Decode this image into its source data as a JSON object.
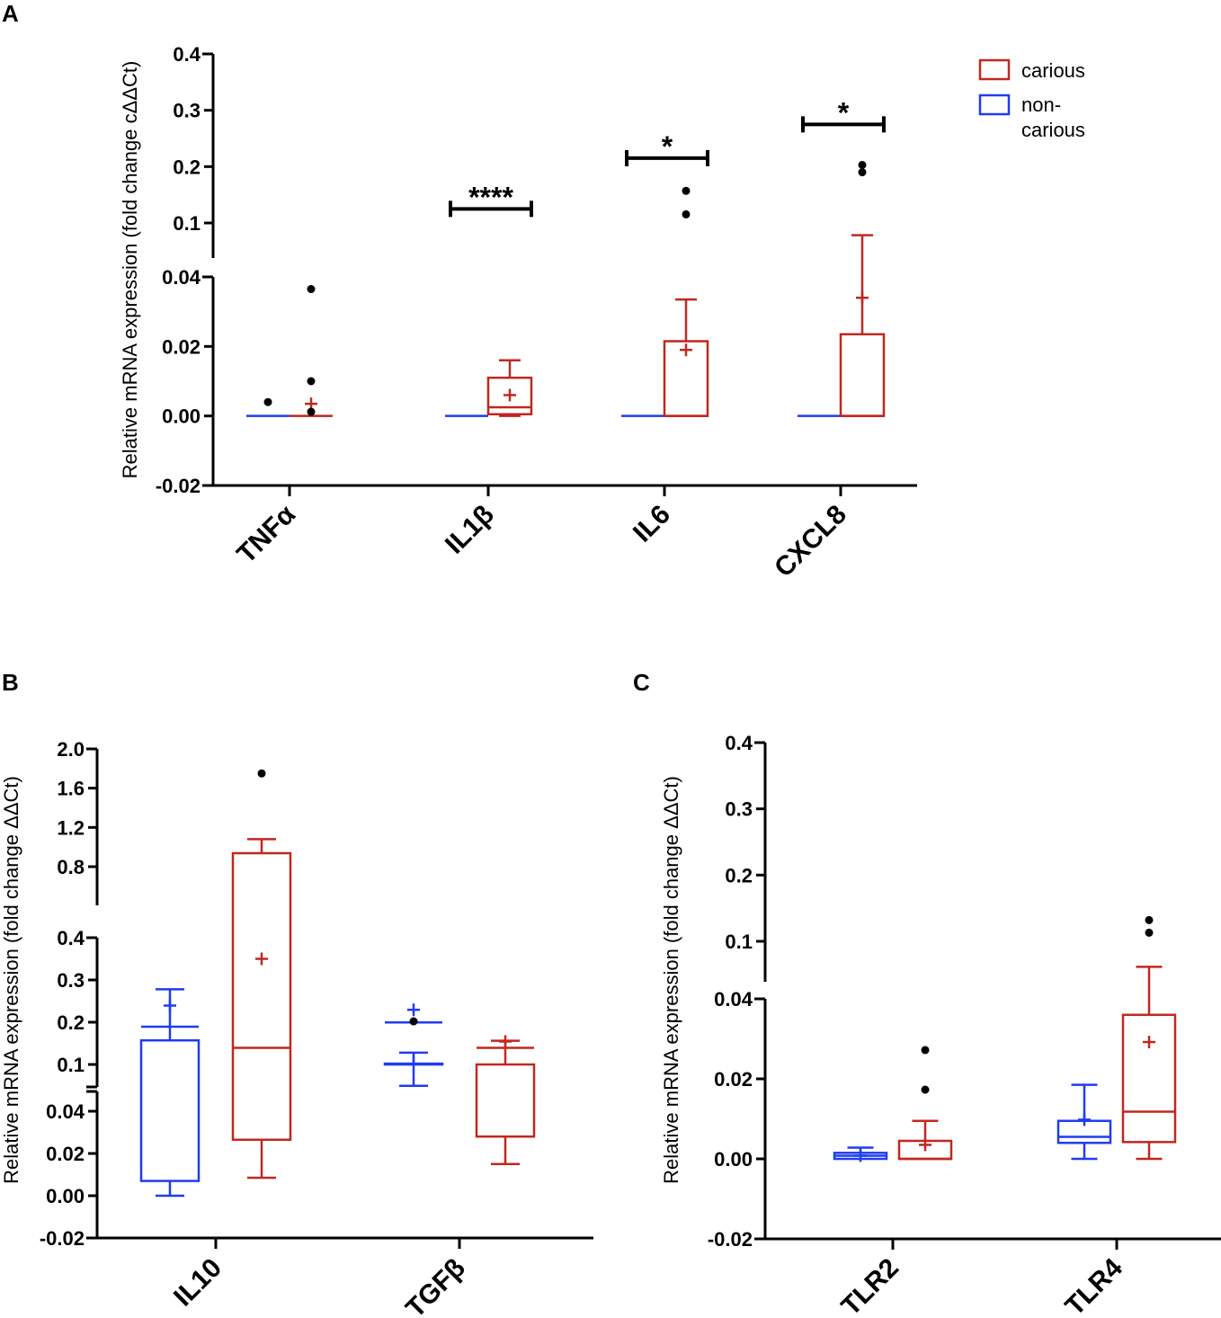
{
  "colors": {
    "carious": "#c0281f",
    "non_carious": "#1f3cf0",
    "outlier": "#000000"
  },
  "legend": [
    {
      "key": "carious",
      "label": "carious",
      "color": "#c0281f"
    },
    {
      "key": "non_carious",
      "label": "non-carious",
      "label_lines": [
        "non-",
        "carious"
      ],
      "color": "#1f3cf0"
    }
  ],
  "chart_data": [
    {
      "id": "A",
      "panel_label": "A",
      "type": "box",
      "ylabel": "Relative mRNA expression (fold change cΔΔCt)",
      "y_segments": [
        {
          "range": [
            -0.02,
            0.04
          ],
          "ticks": [
            "-0.02",
            "0.00",
            "0.02",
            "0.04"
          ]
        },
        {
          "range": [
            0.07,
            0.4
          ],
          "ticks": [
            "0.1",
            "0.2",
            "0.3",
            "0.4"
          ]
        }
      ],
      "categories": [
        "TNFα",
        "IL1β",
        "IL6",
        "CXCL8"
      ],
      "series": [
        {
          "name": "non-carious",
          "key": "non_carious",
          "boxes": [
            {
              "min": 0,
              "q1": 0,
              "median": 0,
              "q3": 0,
              "max": 0,
              "mean": 0,
              "outliers": [
                0.004
              ]
            },
            {
              "min": 0,
              "q1": 0,
              "median": 0,
              "q3": 0,
              "max": 0,
              "mean": 0,
              "outliers": []
            },
            {
              "min": 0,
              "q1": 0,
              "median": 0,
              "q3": 0,
              "max": 0,
              "mean": 0,
              "outliers": []
            },
            {
              "min": 0,
              "q1": 0,
              "median": 0,
              "q3": 0,
              "max": 0,
              "mean": 0,
              "outliers": []
            }
          ]
        },
        {
          "name": "carious",
          "key": "carious",
          "boxes": [
            {
              "min": 0,
              "q1": 0,
              "median": 0,
              "q3": 0,
              "max": 0,
              "mean": 0.0035,
              "outliers": [
                0.0012,
                0.01,
                0.0365
              ]
            },
            {
              "min": 0,
              "q1": 0.0005,
              "median": 0.0025,
              "q3": 0.011,
              "max": 0.016,
              "mean": 0.006,
              "outliers": []
            },
            {
              "min": 0,
              "q1": 0,
              "median": 0,
              "q3": 0.0215,
              "max": 0.0335,
              "mean": 0.019,
              "outliers": [
                0.058,
                0.157
              ]
            },
            {
              "min": 0,
              "q1": 0,
              "median": 0,
              "q3": 0.0235,
              "max": 0.052,
              "mean": 0.034,
              "outliers": [
                0.19,
                0.203
              ]
            }
          ]
        }
      ],
      "significance": [
        {
          "category": "IL1β",
          "label": "****",
          "y": 0.125
        },
        {
          "category": "IL6",
          "label": "*",
          "y": 0.215
        },
        {
          "category": "CXCL8",
          "label": "*",
          "y": 0.275
        }
      ]
    },
    {
      "id": "B",
      "panel_label": "B",
      "type": "box",
      "ylabel": "Relative mRNA expression (fold change ΔΔCt)",
      "y_segments": [
        {
          "range": [
            -0.02,
            0.045
          ],
          "ticks": [
            "-0.02",
            "0.00",
            "0.02",
            "0.04"
          ]
        },
        {
          "range": [
            0.045,
            0.4
          ],
          "ticks": [
            "0.1",
            "0.2",
            "0.3",
            "0.4"
          ]
        },
        {
          "range": [
            0.4,
            2.0
          ],
          "ticks": [
            "0.8",
            "1.2",
            "1.6",
            "2.0"
          ]
        }
      ],
      "categories": [
        "IL10",
        "TGFβ"
      ],
      "series": [
        {
          "name": "non-carious",
          "key": "non_carious",
          "boxes": [
            {
              "min": 0,
              "q1": 0.007,
              "median": 0.08,
              "q3": 0.157,
              "max": 0.278,
              "mean": 0.09,
              "outliers": []
            },
            {
              "min": 0.052,
              "q1": 0.066,
              "median": 0.082,
              "q3": 0.102,
              "max": 0.128,
              "mean": 0.088,
              "outliers": [
                0.202
              ]
            }
          ]
        },
        {
          "name": "carious",
          "key": "carious",
          "boxes": [
            {
              "min": 0.0085,
              "q1": 0.0265,
              "median": 0.07,
              "q3": 0.6,
              "max": 1.08,
              "mean": 0.35,
              "outliers": [
                1.75
              ]
            },
            {
              "min": 0.015,
              "q1": 0.028,
              "median": 0.07,
              "q3": 0.1,
              "max": 0.156,
              "mean": 0.073,
              "outliers": []
            }
          ]
        }
      ]
    },
    {
      "id": "C",
      "panel_label": "C",
      "type": "box",
      "ylabel": "Relative mRNA expression (fold change ΔΔCt)",
      "y_segments": [
        {
          "range": [
            -0.02,
            0.04
          ],
          "ticks": [
            "-0.02",
            "0.00",
            "0.02",
            "0.04"
          ]
        },
        {
          "range": [
            0.07,
            0.4
          ],
          "ticks": [
            "0.1",
            "0.2",
            "0.3",
            "0.4"
          ]
        }
      ],
      "categories": [
        "TLR2",
        "TLR4"
      ],
      "series": [
        {
          "name": "non-carious",
          "key": "non_carious",
          "boxes": [
            {
              "min": 0,
              "q1": 0,
              "median": 0.0008,
              "q3": 0.0015,
              "max": 0.0028,
              "mean": 0.0008,
              "outliers": []
            },
            {
              "min": 0,
              "q1": 0.004,
              "median": 0.0055,
              "q3": 0.0095,
              "max": 0.0185,
              "mean": 0.0098,
              "outliers": []
            }
          ]
        },
        {
          "name": "carious",
          "key": "carious",
          "boxes": [
            {
              "min": 0,
              "q1": 0,
              "median": 0,
              "q3": 0.0045,
              "max": 0.0095,
              "mean": 0.0035,
              "outliers": [
                0.0173,
                0.0272
              ]
            },
            {
              "min": 0,
              "q1": 0.0042,
              "median": 0.0118,
              "q3": 0.036,
              "max": 0.048,
              "mean": 0.0292,
              "outliers": [
                0.113,
                0.132
              ]
            }
          ]
        }
      ]
    }
  ]
}
